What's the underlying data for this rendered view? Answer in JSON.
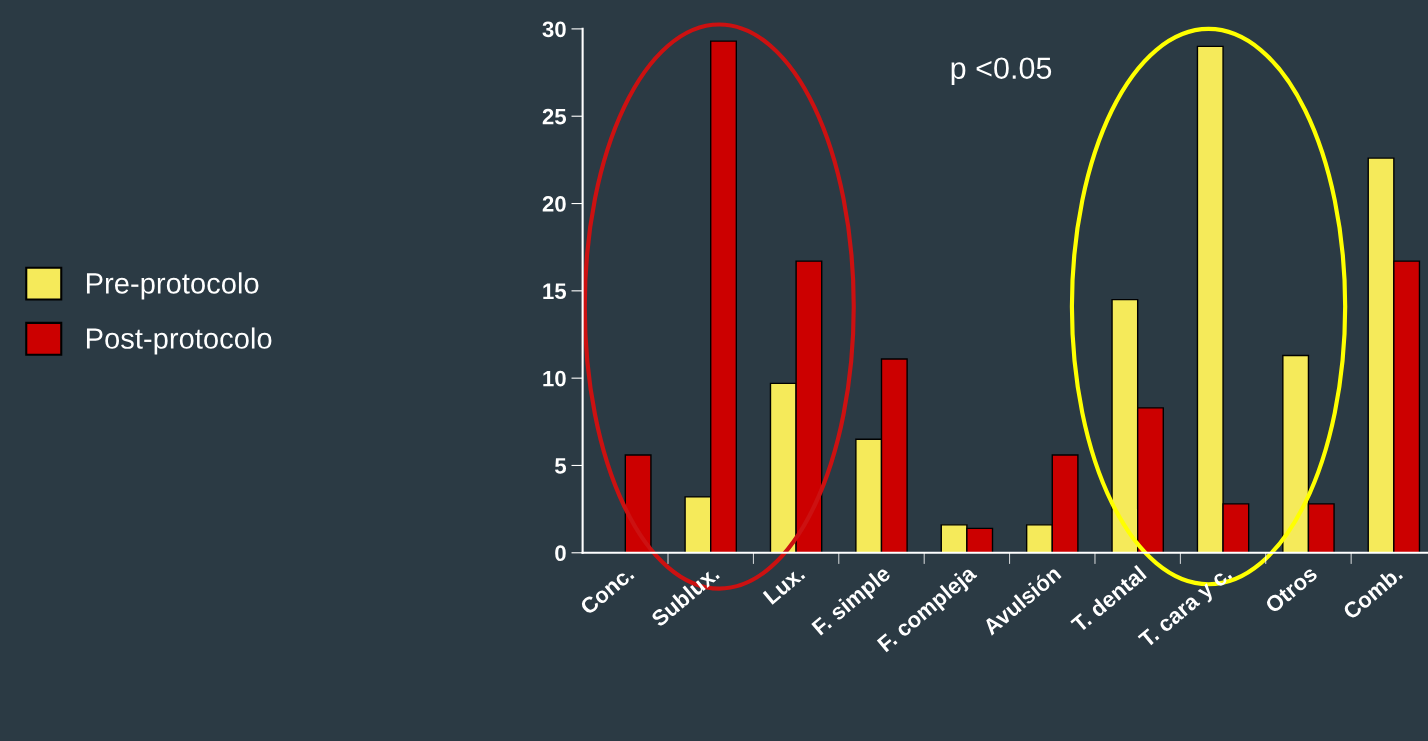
{
  "chart_data": {
    "type": "bar",
    "categories": [
      "Conc.",
      "Sublux.",
      "Lux.",
      "F. simple",
      "F. compleja",
      "Avulsión",
      "T. dental",
      "T. cara y c.",
      "Otros",
      "Comb."
    ],
    "series": [
      {
        "name": "Pre-protocolo",
        "color": "#f5ea5a",
        "values": [
          null,
          3.2,
          9.7,
          6.5,
          1.6,
          1.6,
          14.5,
          29.0,
          11.3,
          22.6
        ]
      },
      {
        "name": "Post-protocolo",
        "color": "#cc0000",
        "values": [
          5.6,
          29.3,
          16.7,
          11.1,
          1.4,
          5.6,
          8.3,
          2.8,
          2.8,
          16.7
        ]
      }
    ],
    "ylim": [
      0,
      30
    ],
    "yticks": [
      0,
      5,
      10,
      15,
      20,
      25,
      30
    ],
    "grid": false,
    "legend": "left",
    "annotations": [
      "p <0.05"
    ]
  }
}
